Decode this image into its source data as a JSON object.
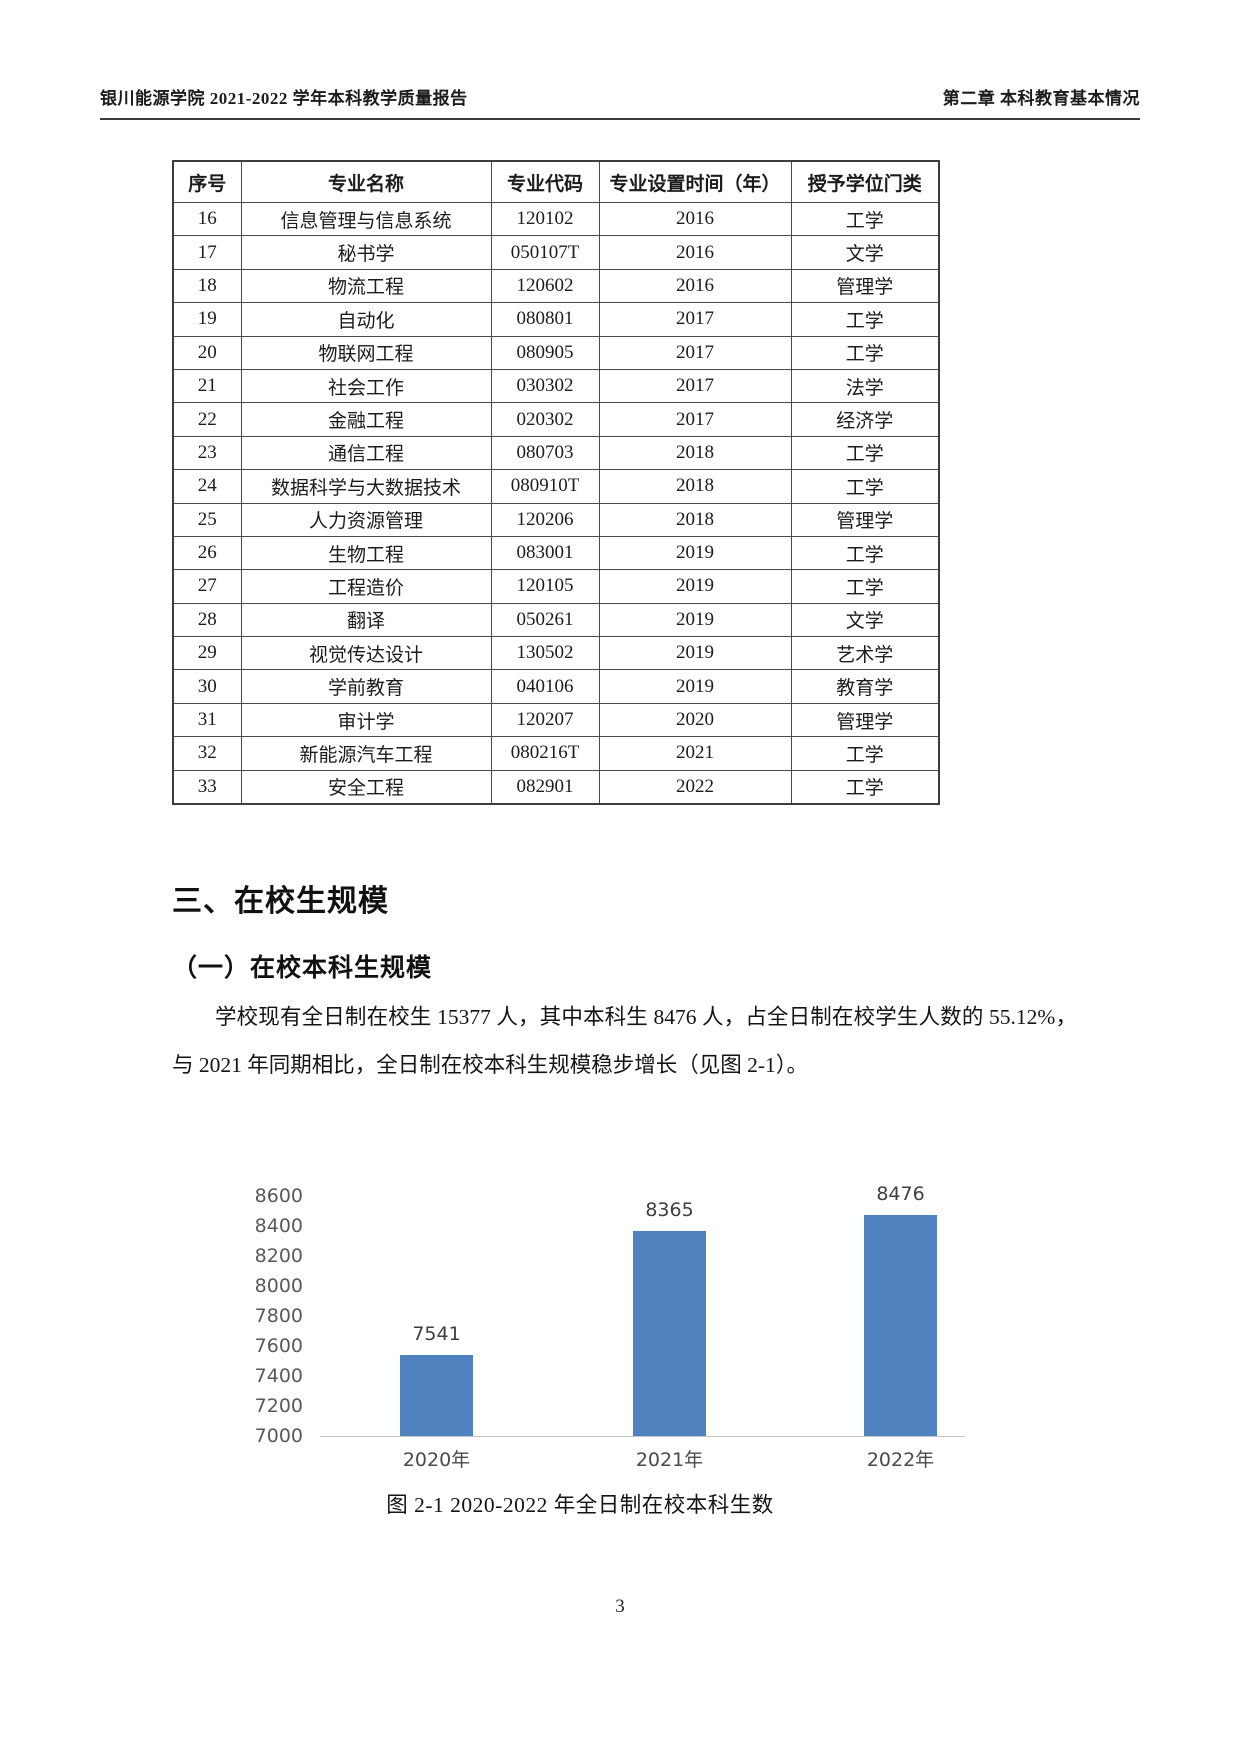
{
  "page": {
    "header_left": "银川能源学院 2021-2022 学年本科教学质量报告",
    "header_right": "第二章 本科教育基本情况",
    "page_number": "3"
  },
  "table": {
    "columns": [
      "序号",
      "专业名称",
      "专业代码",
      "专业设置时间（年）",
      "授予学位门类"
    ],
    "rows": [
      [
        "16",
        "信息管理与信息系统",
        "120102",
        "2016",
        "工学"
      ],
      [
        "17",
        "秘书学",
        "050107T",
        "2016",
        "文学"
      ],
      [
        "18",
        "物流工程",
        "120602",
        "2016",
        "管理学"
      ],
      [
        "19",
        "自动化",
        "080801",
        "2017",
        "工学"
      ],
      [
        "20",
        "物联网工程",
        "080905",
        "2017",
        "工学"
      ],
      [
        "21",
        "社会工作",
        "030302",
        "2017",
        "法学"
      ],
      [
        "22",
        "金融工程",
        "020302",
        "2017",
        "经济学"
      ],
      [
        "23",
        "通信工程",
        "080703",
        "2018",
        "工学"
      ],
      [
        "24",
        "数据科学与大数据技术",
        "080910T",
        "2018",
        "工学"
      ],
      [
        "25",
        "人力资源管理",
        "120206",
        "2018",
        "管理学"
      ],
      [
        "26",
        "生物工程",
        "083001",
        "2019",
        "工学"
      ],
      [
        "27",
        "工程造价",
        "120105",
        "2019",
        "工学"
      ],
      [
        "28",
        "翻译",
        "050261",
        "2019",
        "文学"
      ],
      [
        "29",
        "视觉传达设计",
        "130502",
        "2019",
        "艺术学"
      ],
      [
        "30",
        "学前教育",
        "040106",
        "2019",
        "教育学"
      ],
      [
        "31",
        "审计学",
        "120207",
        "2020",
        "管理学"
      ],
      [
        "32",
        "新能源汽车工程",
        "080216T",
        "2021",
        "工学"
      ],
      [
        "33",
        "安全工程",
        "082901",
        "2022",
        "工学"
      ]
    ]
  },
  "section": {
    "heading": "三、在校生规模",
    "subheading": "（一）在校本科生规模",
    "paragraph": "学校现有全日制在校生 15377 人，其中本科生 8476 人，占全日制在校学生人数的 55.12%，与 2021 年同期相比，全日制在校本科生规模稳步增长（见图 2-1）。"
  },
  "chart_data": {
    "type": "bar",
    "categories": [
      "2020年",
      "2021年",
      "2022年"
    ],
    "values": [
      7541,
      8365,
      8476
    ],
    "title": "图 2-1 2020-2022 年全日制在校本科生数",
    "xlabel": "",
    "ylabel": "",
    "ylim": [
      7000,
      8600
    ],
    "ytick_step": 200,
    "bar_color": "#4E81BD",
    "baseline_color": "#c9c9c9",
    "tick_label_color": "#595959",
    "grid": false,
    "legend": false
  }
}
